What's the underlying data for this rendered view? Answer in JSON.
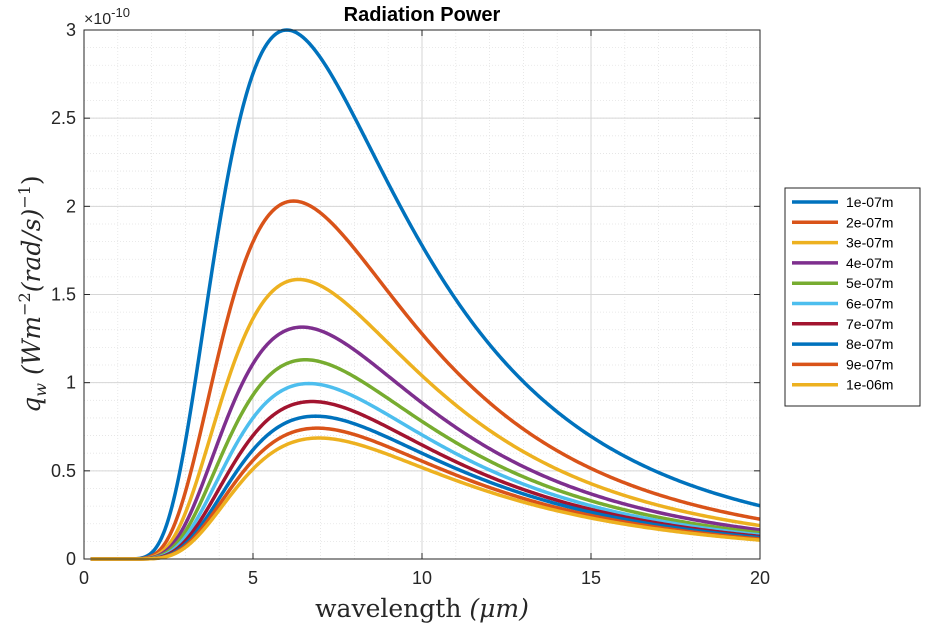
{
  "chart_data": {
    "type": "line",
    "title": "Radiation Power",
    "xlabel_text": "wavelength",
    "xlabel_unit": "(μm)",
    "ylabel_sym": "q",
    "ylabel_sub": "w",
    "ylabel_unit": "(Wm",
    "ylabel_exp1": "−2",
    "ylabel_mid": "(rad/s)",
    "ylabel_exp2": "−1",
    "ylabel_end": ")",
    "y_exponent_label": "×10",
    "y_exponent_power": "-10",
    "xlim": [
      0,
      20
    ],
    "ylim": [
      0,
      3
    ],
    "x_ticks": [
      "0",
      "5",
      "10",
      "15",
      "20"
    ],
    "y_ticks": [
      "0",
      "0.5",
      "1",
      "1.5",
      "2",
      "2.5",
      "3"
    ],
    "grid": true,
    "minor_grid": true,
    "legend_position": "outside-right",
    "series": [
      {
        "name": "1e-07m",
        "color": "#0072BD",
        "peak": 3.0,
        "peak_x": 6.0
      },
      {
        "name": "2e-07m",
        "color": "#D95319",
        "peak": 2.03,
        "peak_x": 6.2
      },
      {
        "name": "3e-07m",
        "color": "#EDB120",
        "peak": 1.585,
        "peak_x": 6.35
      },
      {
        "name": "4e-07m",
        "color": "#7E2F8E",
        "peak": 1.315,
        "peak_x": 6.45
      },
      {
        "name": "5e-07m",
        "color": "#77AC30",
        "peak": 1.13,
        "peak_x": 6.55
      },
      {
        "name": "6e-07m",
        "color": "#4DBEEE",
        "peak": 0.995,
        "peak_x": 6.65
      },
      {
        "name": "7e-07m",
        "color": "#A2142F",
        "peak": 0.893,
        "peak_x": 6.75
      },
      {
        "name": "8e-07m",
        "color": "#0072BD",
        "peak": 0.81,
        "peak_x": 6.85
      },
      {
        "name": "9e-07m",
        "color": "#D95319",
        "peak": 0.742,
        "peak_x": 6.9
      },
      {
        "name": "1e-06m",
        "color": "#EDB120",
        "peak": 0.686,
        "peak_x": 6.95
      }
    ]
  }
}
